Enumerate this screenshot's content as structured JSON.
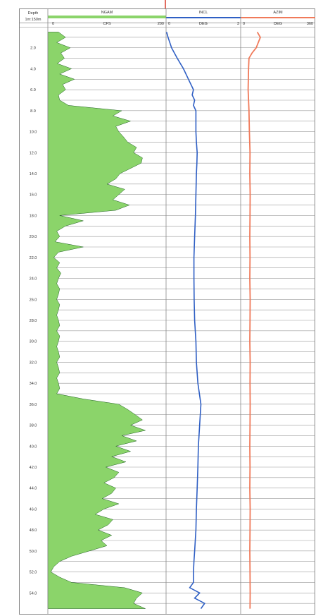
{
  "chart_data": {
    "type": "line",
    "title": "",
    "depth_track": {
      "header": "Depth",
      "scale": "1m:150m",
      "ticks": [
        {
          "depth": 2,
          "label": "2.0"
        },
        {
          "depth": 4,
          "label": "4.0"
        },
        {
          "depth": 6,
          "label": "6.0"
        },
        {
          "depth": 8,
          "label": "8.0"
        },
        {
          "depth": 10,
          "label": "10.0"
        },
        {
          "depth": 12,
          "label": "12.0"
        },
        {
          "depth": 14,
          "label": "14.0"
        },
        {
          "depth": 16,
          "label": "16.0"
        },
        {
          "depth": 18,
          "label": "18.0"
        },
        {
          "depth": 20,
          "label": "20.0"
        },
        {
          "depth": 22,
          "label": "22.0"
        },
        {
          "depth": 24,
          "label": "24.0"
        },
        {
          "depth": 26,
          "label": "26.0"
        },
        {
          "depth": 28,
          "label": "28.0"
        },
        {
          "depth": 30,
          "label": "30.0"
        },
        {
          "depth": 32,
          "label": "32.0"
        },
        {
          "depth": 34,
          "label": "34.0"
        },
        {
          "depth": 36,
          "label": "36.0"
        },
        {
          "depth": 38,
          "label": "38.0"
        },
        {
          "depth": 40,
          "label": "40.0"
        },
        {
          "depth": 42,
          "label": "42.0"
        },
        {
          "depth": 44,
          "label": "44.0"
        },
        {
          "depth": 46,
          "label": "46.0"
        },
        {
          "depth": 48,
          "label": "48.0"
        },
        {
          "depth": 50,
          "label": "50.0"
        },
        {
          "depth": 52,
          "label": "52.0"
        },
        {
          "depth": 54,
          "label": "54.0"
        }
      ],
      "ylim": [
        0,
        56
      ],
      "grid_interval": 1
    },
    "tracks": [
      {
        "name": "NGAM",
        "unit": "CFS",
        "xlim": [
          0,
          200
        ],
        "scale_min_label": "0",
        "scale_max_label": "200",
        "color": "#3aa83a",
        "style": "filled",
        "depth": [
          0.5,
          1,
          1.5,
          2,
          2.5,
          3,
          3.5,
          4,
          4.5,
          5,
          5.5,
          6,
          6.5,
          7,
          7.5,
          8,
          8.5,
          9,
          9.5,
          10,
          10.5,
          11,
          11.5,
          12,
          12.5,
          13,
          13.5,
          14,
          14.5,
          15,
          15.5,
          16,
          16.5,
          17,
          17.5,
          18,
          18.5,
          19,
          19.5,
          20,
          20.5,
          21,
          21.5,
          22,
          22.5,
          23,
          23.5,
          24,
          24.5,
          25,
          25.5,
          26,
          26.5,
          27,
          27.5,
          28,
          28.5,
          29,
          29.5,
          30,
          30.5,
          31,
          31.5,
          32,
          32.5,
          33,
          33.5,
          34,
          34.5,
          35,
          35.5,
          36,
          36.5,
          37,
          37.5,
          38,
          38.5,
          39,
          39.5,
          40,
          40.5,
          41,
          41.5,
          42,
          42.5,
          43,
          43.5,
          44,
          44.5,
          45,
          45.5,
          46,
          46.5,
          47,
          47.5,
          48,
          48.5,
          49,
          49.5,
          50,
          50.5,
          51,
          51.5,
          52,
          52.5,
          53,
          53.5,
          54,
          54.5,
          55,
          55.5
        ],
        "values": [
          18,
          30,
          15,
          38,
          22,
          28,
          16,
          40,
          20,
          45,
          25,
          30,
          18,
          20,
          35,
          125,
          110,
          140,
          115,
          120,
          128,
          135,
          150,
          145,
          160,
          158,
          140,
          122,
          115,
          100,
          130,
          120,
          110,
          138,
          115,
          20,
          60,
          30,
          15,
          20,
          12,
          60,
          18,
          10,
          20,
          15,
          22,
          18,
          15,
          20,
          18,
          15,
          20,
          18,
          15,
          18,
          20,
          15,
          20,
          18,
          15,
          18,
          20,
          15,
          18,
          20,
          15,
          18,
          20,
          15,
          60,
          120,
          135,
          148,
          160,
          140,
          165,
          125,
          150,
          115,
          140,
          108,
          132,
          98,
          120,
          112,
          95,
          115,
          108,
          92,
          120,
          95,
          80,
          110,
          102,
          85,
          108,
          90,
          100,
          70,
          40,
          20,
          10,
          5,
          20,
          40,
          130,
          160,
          150,
          145,
          165
        ]
      },
      {
        "name": "INCL",
        "unit": "DEG",
        "xlim": [
          0,
          3
        ],
        "scale_min_label": "0",
        "scale_max_label": "3",
        "color": "#2f5fc4",
        "style": "line",
        "depth": [
          0.5,
          1,
          2,
          3,
          4,
          5,
          6,
          6.5,
          7,
          7.5,
          8,
          9,
          10,
          11,
          12,
          13,
          14,
          16,
          18,
          20,
          22,
          24,
          26,
          28,
          30,
          32,
          34,
          36,
          38,
          40,
          42,
          44,
          46,
          48,
          50,
          51,
          52,
          53,
          53.5,
          54,
          54.5,
          55,
          55.5
        ],
        "values": [
          0.02,
          0.08,
          0.22,
          0.45,
          0.7,
          0.9,
          1.1,
          1.05,
          1.15,
          1.1,
          1.2,
          1.2,
          1.2,
          1.22,
          1.25,
          1.24,
          1.22,
          1.2,
          1.18,
          1.15,
          1.12,
          1.12,
          1.13,
          1.15,
          1.2,
          1.22,
          1.28,
          1.4,
          1.35,
          1.3,
          1.28,
          1.25,
          1.22,
          1.2,
          1.15,
          1.12,
          1.1,
          1.1,
          0.95,
          1.35,
          1.15,
          1.55,
          1.4
        ]
      },
      {
        "name": "AZIM",
        "unit": "DEG",
        "xlim": [
          0,
          360
        ],
        "scale_min_label": "0",
        "scale_max_label": "360",
        "color": "#f07a5a",
        "style": "line",
        "depth": [
          0.5,
          1,
          1.5,
          2,
          2.5,
          3,
          4,
          6,
          8,
          10,
          12,
          14,
          16,
          18,
          20,
          22,
          24,
          26,
          28,
          30,
          32,
          34,
          36,
          38,
          40,
          42,
          44,
          46,
          48,
          50,
          52,
          54,
          55.5
        ],
        "values": [
          80,
          95,
          85,
          75,
          55,
          40,
          38,
          36,
          40,
          42,
          45,
          44,
          46,
          45,
          44,
          45,
          44,
          46,
          45,
          44,
          46,
          45,
          46,
          45,
          44,
          45,
          44,
          46,
          45,
          44,
          45,
          46,
          45
        ]
      }
    ],
    "grid": true
  }
}
